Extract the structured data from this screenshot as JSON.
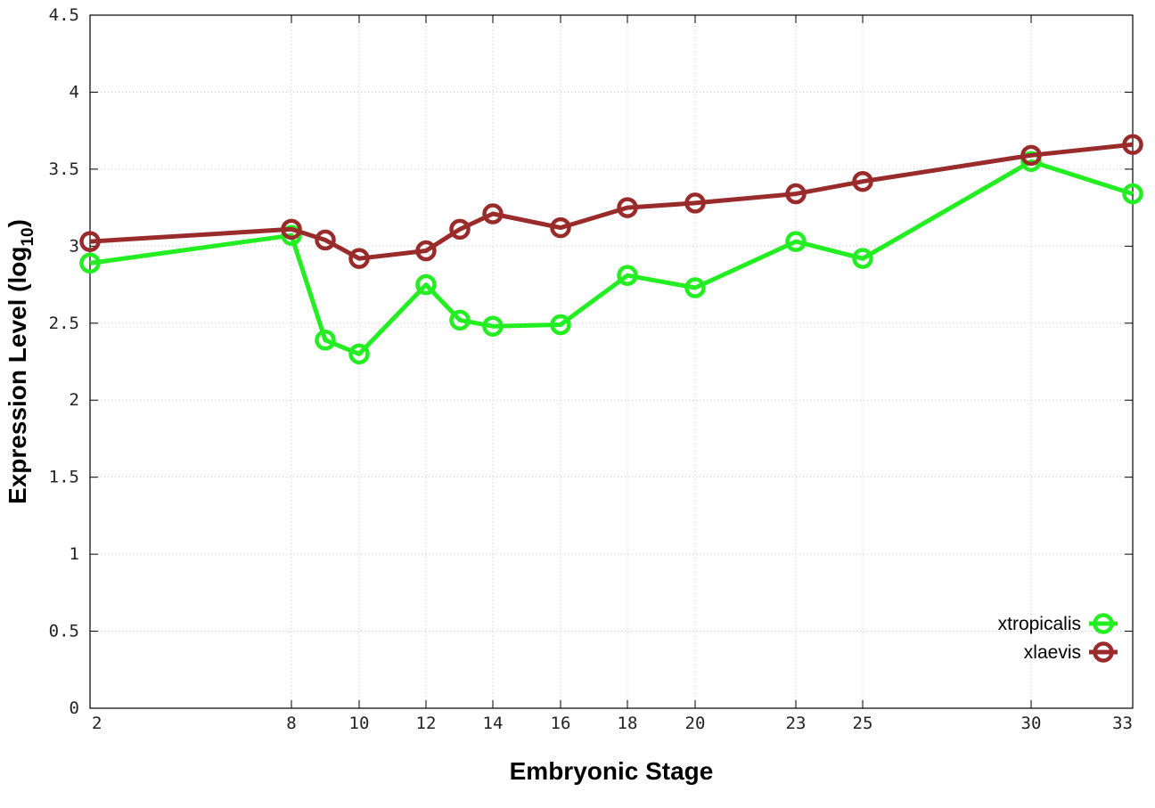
{
  "chart_data": {
    "type": "line",
    "xlabel": "Embryonic Stage",
    "ylabel": "Expression Level (log",
    "ylabel_subscript": "10",
    "ylabel_suffix": ")",
    "xlim": [
      2,
      33
    ],
    "ylim": [
      0,
      4.5
    ],
    "x_ticks": [
      2,
      8,
      10,
      12,
      14,
      16,
      18,
      20,
      23,
      25,
      30,
      33
    ],
    "x_tick_labels": [
      "2",
      "8",
      "10",
      "12",
      "14",
      "16",
      "18",
      "20",
      "23",
      "25",
      "30",
      "33"
    ],
    "y_ticks": [
      0,
      0.5,
      1,
      1.5,
      2,
      2.5,
      3,
      3.5,
      4,
      4.5
    ],
    "y_tick_labels": [
      "0",
      "0.5",
      "1",
      "1.5",
      "2",
      "2.5",
      "3",
      "3.5",
      "4",
      "4.5"
    ],
    "x_scale": "categorical-spacing-by-stage",
    "grid": true,
    "legend_position": "bottom-right",
    "series": [
      {
        "name": "xtropicalis",
        "color": "#22ee22",
        "marker": "open-circle",
        "points": [
          [
            2,
            2.89
          ],
          [
            8,
            3.07
          ],
          [
            9,
            2.39
          ],
          [
            10,
            2.3
          ],
          [
            12,
            2.75
          ],
          [
            13,
            2.52
          ],
          [
            14,
            2.48
          ],
          [
            16,
            2.49
          ],
          [
            18,
            2.81
          ],
          [
            20,
            2.73
          ],
          [
            23,
            3.03
          ],
          [
            25,
            2.92
          ],
          [
            30,
            3.55
          ],
          [
            33,
            3.34
          ]
        ]
      },
      {
        "name": "xlaevis",
        "color": "#992b2b",
        "marker": "open-circle",
        "points": [
          [
            2,
            3.03
          ],
          [
            8,
            3.11
          ],
          [
            9,
            3.04
          ],
          [
            10,
            2.92
          ],
          [
            12,
            2.97
          ],
          [
            13,
            3.11
          ],
          [
            14,
            3.21
          ],
          [
            16,
            3.12
          ],
          [
            18,
            3.25
          ],
          [
            20,
            3.28
          ],
          [
            23,
            3.34
          ],
          [
            25,
            3.42
          ],
          [
            30,
            3.59
          ],
          [
            33,
            3.66
          ]
        ]
      }
    ]
  }
}
